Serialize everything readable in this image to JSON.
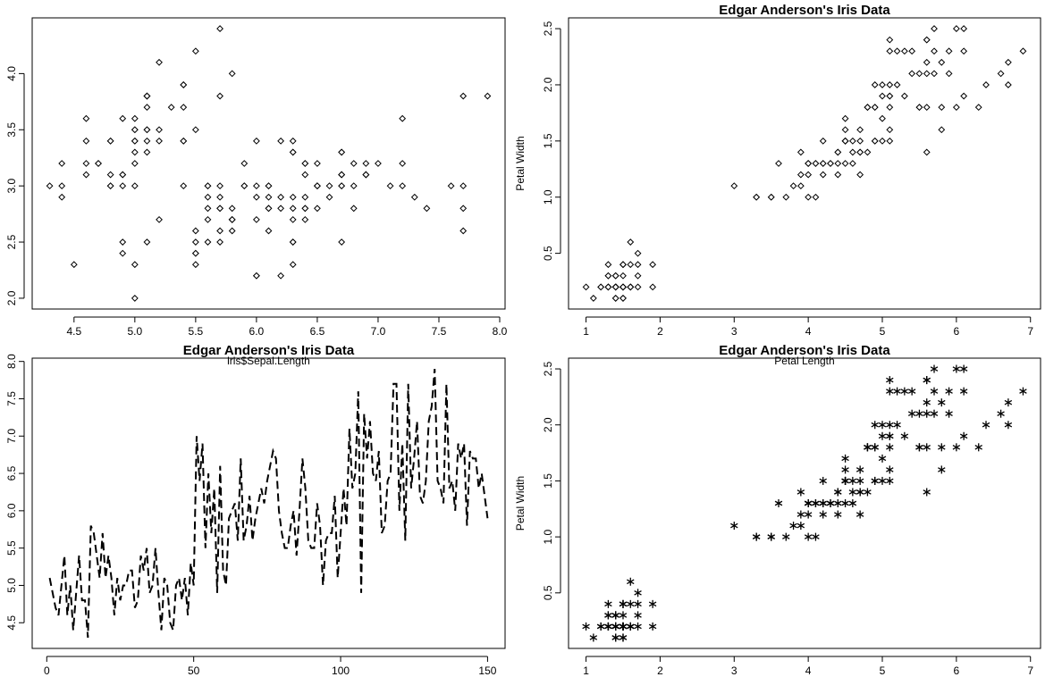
{
  "chart_data": [
    {
      "type": "scatter",
      "title": "",
      "xlabel": "",
      "ylabel": "",
      "xlim": [
        4.3,
        7.9
      ],
      "ylim": [
        2.0,
        4.4
      ],
      "xticks": [
        "4.5",
        "5.0",
        "5.5",
        "6.0",
        "6.5",
        "7.0",
        "7.5",
        "8.0"
      ],
      "yticks": [
        "2.0",
        "2.5",
        "3.0",
        "3.5",
        "4.0"
      ],
      "marker": "open-diamond",
      "x": [
        5.1,
        4.9,
        4.7,
        4.6,
        5.0,
        5.4,
        4.6,
        5.0,
        4.4,
        4.9,
        5.4,
        4.8,
        4.8,
        4.3,
        5.8,
        5.7,
        5.4,
        5.1,
        5.7,
        5.1,
        5.4,
        5.1,
        4.6,
        5.1,
        4.8,
        5.0,
        5.0,
        5.2,
        5.2,
        4.7,
        4.8,
        5.4,
        5.2,
        5.5,
        4.9,
        5.0,
        5.5,
        4.9,
        4.4,
        5.1,
        5.0,
        4.5,
        4.4,
        5.0,
        5.1,
        4.8,
        5.1,
        4.6,
        5.3,
        5.0,
        7.0,
        6.4,
        6.9,
        5.5,
        6.5,
        5.7,
        6.3,
        4.9,
        6.6,
        5.2,
        5.0,
        5.9,
        6.0,
        6.1,
        5.6,
        6.7,
        5.6,
        5.8,
        6.2,
        5.6,
        5.9,
        6.1,
        6.3,
        6.1,
        6.4,
        6.6,
        6.8,
        6.7,
        6.0,
        5.7,
        5.5,
        5.5,
        5.8,
        6.0,
        5.4,
        6.0,
        6.7,
        6.3,
        5.6,
        5.5,
        5.5,
        6.1,
        5.8,
        5.0,
        5.6,
        5.7,
        5.7,
        6.2,
        5.1,
        5.7,
        6.3,
        5.8,
        7.1,
        6.3,
        6.5,
        7.6,
        4.9,
        7.3,
        6.7,
        7.2,
        6.5,
        6.4,
        6.8,
        5.7,
        5.8,
        6.4,
        6.5,
        7.7,
        7.7,
        6.0,
        6.9,
        5.6,
        7.7,
        6.3,
        6.7,
        7.2,
        6.2,
        6.1,
        6.4,
        7.2,
        7.4,
        7.9,
        6.4,
        6.3,
        6.1,
        7.7,
        6.3,
        6.4,
        6.0,
        6.9,
        6.7,
        6.9,
        5.8,
        6.8,
        6.7,
        6.7,
        6.3,
        6.5,
        6.2,
        5.9
      ],
      "y": [
        3.5,
        3.0,
        3.2,
        3.1,
        3.6,
        3.9,
        3.4,
        3.4,
        2.9,
        3.1,
        3.7,
        3.4,
        3.0,
        3.0,
        4.0,
        4.4,
        3.9,
        3.5,
        3.8,
        3.8,
        3.4,
        3.7,
        3.6,
        3.3,
        3.4,
        3.0,
        3.4,
        3.5,
        3.4,
        3.2,
        3.1,
        3.4,
        4.1,
        4.2,
        3.1,
        3.2,
        3.5,
        3.6,
        3.0,
        3.4,
        3.5,
        2.3,
        3.2,
        3.5,
        3.8,
        3.0,
        3.8,
        3.2,
        3.7,
        3.3,
        3.2,
        3.2,
        3.1,
        2.3,
        2.8,
        2.8,
        3.3,
        2.4,
        2.9,
        2.7,
        2.0,
        3.0,
        2.2,
        2.9,
        2.9,
        3.1,
        3.0,
        2.7,
        2.2,
        2.5,
        3.2,
        2.8,
        2.5,
        2.8,
        2.9,
        3.0,
        2.8,
        3.0,
        2.9,
        2.6,
        2.4,
        2.4,
        2.7,
        2.7,
        3.0,
        3.4,
        3.1,
        2.3,
        3.0,
        2.5,
        2.6,
        3.0,
        2.6,
        2.3,
        2.7,
        3.0,
        2.9,
        2.9,
        2.5,
        2.8,
        3.3,
        2.7,
        3.0,
        2.9,
        3.0,
        3.0,
        2.5,
        2.9,
        2.5,
        3.6,
        3.2,
        2.7,
        3.0,
        2.5,
        2.8,
        3.2,
        3.0,
        3.8,
        2.6,
        2.2,
        3.2,
        2.8,
        2.8,
        2.7,
        3.3,
        3.2,
        2.8,
        3.0,
        2.8,
        3.0,
        2.8,
        3.8,
        2.8,
        2.8,
        2.6,
        3.0,
        3.4,
        3.1,
        3.0,
        3.1,
        3.1,
        3.1,
        2.7,
        3.2,
        3.3,
        3.0,
        2.5,
        3.0,
        3.4,
        3.0
      ]
    },
    {
      "type": "scatter",
      "title": "Edgar Anderson's Iris Data",
      "xlabel": "",
      "ylabel": "Petal Width",
      "xlim": [
        1.0,
        6.9
      ],
      "ylim": [
        0.1,
        2.5
      ],
      "xticks": [
        "1",
        "2",
        "3",
        "4",
        "5",
        "6",
        "7"
      ],
      "yticks": [
        "0.5",
        "1.0",
        "1.5",
        "2.0",
        "2.5"
      ],
      "marker": "open-diamond",
      "x": [
        1.4,
        1.4,
        1.3,
        1.5,
        1.4,
        1.7,
        1.4,
        1.5,
        1.4,
        1.5,
        1.5,
        1.6,
        1.4,
        1.1,
        1.2,
        1.5,
        1.3,
        1.4,
        1.7,
        1.5,
        1.7,
        1.5,
        1.0,
        1.7,
        1.9,
        1.6,
        1.6,
        1.5,
        1.4,
        1.6,
        1.6,
        1.5,
        1.5,
        1.4,
        1.5,
        1.2,
        1.3,
        1.4,
        1.3,
        1.5,
        1.3,
        1.3,
        1.3,
        1.6,
        1.9,
        1.4,
        1.6,
        1.4,
        1.5,
        1.4,
        4.7,
        4.5,
        4.9,
        4.0,
        4.6,
        4.5,
        4.7,
        3.3,
        4.6,
        3.9,
        3.5,
        4.2,
        4.0,
        4.7,
        3.6,
        4.4,
        4.5,
        4.1,
        4.5,
        3.9,
        4.8,
        4.0,
        4.9,
        4.7,
        4.3,
        4.4,
        4.8,
        5.0,
        4.5,
        3.5,
        3.8,
        3.7,
        3.9,
        5.1,
        4.5,
        4.5,
        4.7,
        4.4,
        4.1,
        4.0,
        4.4,
        4.6,
        4.0,
        3.3,
        4.2,
        4.2,
        4.2,
        4.3,
        3.0,
        4.1,
        6.0,
        5.1,
        5.9,
        5.6,
        5.8,
        6.6,
        4.5,
        6.3,
        5.8,
        6.1,
        5.1,
        5.3,
        5.5,
        5.0,
        5.1,
        5.3,
        5.5,
        6.7,
        6.9,
        5.0,
        5.7,
        4.9,
        6.7,
        4.9,
        5.7,
        6.0,
        4.8,
        4.9,
        5.6,
        5.8,
        6.1,
        6.4,
        5.6,
        5.1,
        5.6,
        6.1,
        5.6,
        5.5,
        4.8,
        5.4,
        5.6,
        5.1,
        5.1,
        5.9,
        5.7,
        5.2,
        5.0,
        5.2,
        5.4,
        5.1
      ],
      "y": [
        0.2,
        0.2,
        0.2,
        0.2,
        0.2,
        0.4,
        0.3,
        0.2,
        0.2,
        0.1,
        0.2,
        0.2,
        0.1,
        0.1,
        0.2,
        0.4,
        0.4,
        0.3,
        0.3,
        0.3,
        0.2,
        0.4,
        0.2,
        0.5,
        0.2,
        0.2,
        0.4,
        0.2,
        0.2,
        0.2,
        0.2,
        0.4,
        0.1,
        0.2,
        0.2,
        0.2,
        0.2,
        0.1,
        0.2,
        0.2,
        0.3,
        0.3,
        0.2,
        0.6,
        0.4,
        0.3,
        0.2,
        0.2,
        0.2,
        0.2,
        1.4,
        1.5,
        1.5,
        1.3,
        1.5,
        1.3,
        1.6,
        1.0,
        1.3,
        1.4,
        1.0,
        1.5,
        1.0,
        1.4,
        1.3,
        1.4,
        1.5,
        1.0,
        1.5,
        1.1,
        1.8,
        1.3,
        1.5,
        1.2,
        1.3,
        1.4,
        1.4,
        1.7,
        1.5,
        1.0,
        1.1,
        1.0,
        1.2,
        1.6,
        1.5,
        1.6,
        1.5,
        1.3,
        1.3,
        1.3,
        1.2,
        1.4,
        1.2,
        1.0,
        1.3,
        1.2,
        1.3,
        1.3,
        1.1,
        1.3,
        2.5,
        1.9,
        2.1,
        1.8,
        2.2,
        2.1,
        1.7,
        1.8,
        1.8,
        2.5,
        2.0,
        1.9,
        2.1,
        2.0,
        2.4,
        2.3,
        1.8,
        2.2,
        2.3,
        1.5,
        2.3,
        2.0,
        2.0,
        1.8,
        2.1,
        1.8,
        1.8,
        1.8,
        2.1,
        1.6,
        1.9,
        2.0,
        2.2,
        1.5,
        1.4,
        2.3,
        2.4,
        1.8,
        1.8,
        2.1,
        2.4,
        2.3,
        1.9,
        2.3,
        2.5,
        2.3,
        1.9,
        2.0,
        2.3,
        1.8
      ]
    },
    {
      "type": "line",
      "title": "Edgar Anderson's Iris Data",
      "subtitle": "iris$Sepal.Length",
      "xlabel": "",
      "ylabel": "",
      "xlim": [
        1,
        150
      ],
      "ylim": [
        4.3,
        7.9
      ],
      "xticks": [
        "0",
        "50",
        "100",
        "150"
      ],
      "yticks": [
        "4.5",
        "5.0",
        "5.5",
        "6.0",
        "6.5",
        "7.0",
        "7.5",
        "8.0"
      ],
      "line_style": "dashed",
      "y": [
        5.1,
        4.9,
        4.7,
        4.6,
        5.0,
        5.4,
        4.6,
        5.0,
        4.4,
        4.9,
        5.4,
        4.8,
        4.8,
        4.3,
        5.8,
        5.7,
        5.4,
        5.1,
        5.7,
        5.1,
        5.4,
        5.1,
        4.6,
        5.1,
        4.8,
        5.0,
        5.0,
        5.2,
        5.2,
        4.7,
        4.8,
        5.4,
        5.2,
        5.5,
        4.9,
        5.0,
        5.5,
        4.9,
        4.4,
        5.1,
        5.0,
        4.5,
        4.4,
        5.0,
        5.1,
        4.8,
        5.1,
        4.6,
        5.3,
        5.0,
        7.0,
        6.4,
        6.9,
        5.5,
        6.5,
        5.7,
        6.3,
        4.9,
        6.6,
        5.2,
        5.0,
        5.9,
        6.0,
        6.1,
        5.6,
        6.7,
        5.6,
        5.8,
        6.2,
        5.6,
        5.9,
        6.1,
        6.3,
        6.1,
        6.4,
        6.6,
        6.8,
        6.7,
        6.0,
        5.7,
        5.5,
        5.5,
        5.8,
        6.0,
        5.4,
        6.0,
        6.7,
        6.3,
        5.6,
        5.5,
        5.5,
        6.1,
        5.8,
        5.0,
        5.6,
        5.7,
        5.7,
        6.2,
        5.1,
        5.7,
        6.3,
        5.8,
        7.1,
        6.3,
        6.5,
        7.6,
        4.9,
        7.3,
        6.7,
        7.2,
        6.5,
        6.4,
        6.8,
        5.7,
        5.8,
        6.4,
        6.5,
        7.7,
        7.7,
        6.0,
        6.9,
        5.6,
        7.7,
        6.3,
        6.7,
        7.2,
        6.2,
        6.1,
        6.4,
        7.2,
        7.4,
        7.9,
        6.4,
        6.3,
        6.1,
        7.7,
        6.3,
        6.4,
        6.0,
        6.9,
        6.7,
        6.9,
        5.8,
        6.8,
        6.7,
        6.7,
        6.3,
        6.5,
        6.2,
        5.9
      ]
    },
    {
      "type": "scatter",
      "title": "Edgar Anderson's Iris Data",
      "subtitle": "Petal Length",
      "xlabel": "",
      "ylabel": "Petal Width",
      "xlim": [
        1.0,
        6.9
      ],
      "ylim": [
        0.1,
        2.5
      ],
      "xticks": [
        "1",
        "2",
        "3",
        "4",
        "5",
        "6",
        "7"
      ],
      "yticks": [
        "0.5",
        "1.0",
        "1.5",
        "2.0",
        "2.5"
      ],
      "marker": "asterisk",
      "x": [
        1.4,
        1.4,
        1.3,
        1.5,
        1.4,
        1.7,
        1.4,
        1.5,
        1.4,
        1.5,
        1.5,
        1.6,
        1.4,
        1.1,
        1.2,
        1.5,
        1.3,
        1.4,
        1.7,
        1.5,
        1.7,
        1.5,
        1.0,
        1.7,
        1.9,
        1.6,
        1.6,
        1.5,
        1.4,
        1.6,
        1.6,
        1.5,
        1.5,
        1.4,
        1.5,
        1.2,
        1.3,
        1.4,
        1.3,
        1.5,
        1.3,
        1.3,
        1.3,
        1.6,
        1.9,
        1.4,
        1.6,
        1.4,
        1.5,
        1.4,
        4.7,
        4.5,
        4.9,
        4.0,
        4.6,
        4.5,
        4.7,
        3.3,
        4.6,
        3.9,
        3.5,
        4.2,
        4.0,
        4.7,
        3.6,
        4.4,
        4.5,
        4.1,
        4.5,
        3.9,
        4.8,
        4.0,
        4.9,
        4.7,
        4.3,
        4.4,
        4.8,
        5.0,
        4.5,
        3.5,
        3.8,
        3.7,
        3.9,
        5.1,
        4.5,
        4.5,
        4.7,
        4.4,
        4.1,
        4.0,
        4.4,
        4.6,
        4.0,
        3.3,
        4.2,
        4.2,
        4.2,
        4.3,
        3.0,
        4.1,
        6.0,
        5.1,
        5.9,
        5.6,
        5.8,
        6.6,
        4.5,
        6.3,
        5.8,
        6.1,
        5.1,
        5.3,
        5.5,
        5.0,
        5.1,
        5.3,
        5.5,
        6.7,
        6.9,
        5.0,
        5.7,
        4.9,
        6.7,
        4.9,
        5.7,
        6.0,
        4.8,
        4.9,
        5.6,
        5.8,
        6.1,
        6.4,
        5.6,
        5.1,
        5.6,
        6.1,
        5.6,
        5.5,
        4.8,
        5.4,
        5.6,
        5.1,
        5.1,
        5.9,
        5.7,
        5.2,
        5.0,
        5.2,
        5.4,
        5.1
      ],
      "y": [
        0.2,
        0.2,
        0.2,
        0.2,
        0.2,
        0.4,
        0.3,
        0.2,
        0.2,
        0.1,
        0.2,
        0.2,
        0.1,
        0.1,
        0.2,
        0.4,
        0.4,
        0.3,
        0.3,
        0.3,
        0.2,
        0.4,
        0.2,
        0.5,
        0.2,
        0.2,
        0.4,
        0.2,
        0.2,
        0.2,
        0.2,
        0.4,
        0.1,
        0.2,
        0.2,
        0.2,
        0.2,
        0.1,
        0.2,
        0.2,
        0.3,
        0.3,
        0.2,
        0.6,
        0.4,
        0.3,
        0.2,
        0.2,
        0.2,
        0.2,
        1.4,
        1.5,
        1.5,
        1.3,
        1.5,
        1.3,
        1.6,
        1.0,
        1.3,
        1.4,
        1.0,
        1.5,
        1.0,
        1.4,
        1.3,
        1.4,
        1.5,
        1.0,
        1.5,
        1.1,
        1.8,
        1.3,
        1.5,
        1.2,
        1.3,
        1.4,
        1.4,
        1.7,
        1.5,
        1.0,
        1.1,
        1.0,
        1.2,
        1.6,
        1.5,
        1.6,
        1.5,
        1.3,
        1.3,
        1.3,
        1.2,
        1.4,
        1.2,
        1.0,
        1.3,
        1.2,
        1.3,
        1.3,
        1.1,
        1.3,
        2.5,
        1.9,
        2.1,
        1.8,
        2.2,
        2.1,
        1.7,
        1.8,
        1.8,
        2.5,
        2.0,
        1.9,
        2.1,
        2.0,
        2.4,
        2.3,
        1.8,
        2.2,
        2.3,
        1.5,
        2.3,
        2.0,
        2.0,
        1.8,
        2.1,
        1.8,
        1.8,
        1.8,
        2.1,
        1.6,
        1.9,
        2.0,
        2.2,
        1.5,
        1.4,
        2.3,
        2.4,
        1.8,
        1.8,
        2.1,
        2.4,
        2.3,
        1.9,
        2.3,
        2.5,
        2.3,
        1.9,
        2.0,
        2.3,
        1.8
      ]
    }
  ]
}
